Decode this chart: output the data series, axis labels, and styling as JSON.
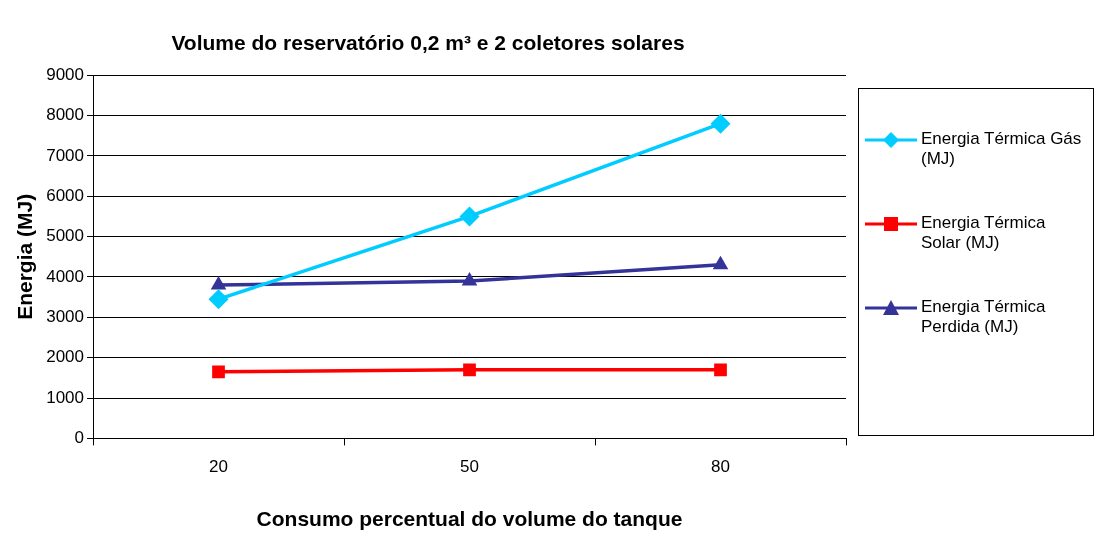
{
  "chart_data": {
    "type": "line",
    "title": "Volume do reservatório 0,2 m³ e 2 coletores solares",
    "xlabel": "Consumo percentual do volume do tanque",
    "ylabel": "Energia (MJ)",
    "categories": [
      "20",
      "50",
      "80"
    ],
    "series": [
      {
        "name": "Energia Térmica Gás (MJ)",
        "color": "#00ccff",
        "marker": "diamond",
        "values": [
          3450,
          5500,
          7800
        ]
      },
      {
        "name": "Energia Térmica Solar (MJ)",
        "color": "#ff0000",
        "marker": "square",
        "values": [
          1650,
          1700,
          1700
        ]
      },
      {
        "name": "Energia Térmica Perdida (MJ)",
        "color": "#333399",
        "marker": "triangle",
        "values": [
          3800,
          3900,
          4300
        ]
      }
    ],
    "ylim": [
      0,
      9000
    ],
    "yticks": [
      0,
      1000,
      2000,
      3000,
      4000,
      5000,
      6000,
      7000,
      8000,
      9000
    ],
    "grid": "y",
    "legend": "right",
    "line_style": "solid"
  }
}
